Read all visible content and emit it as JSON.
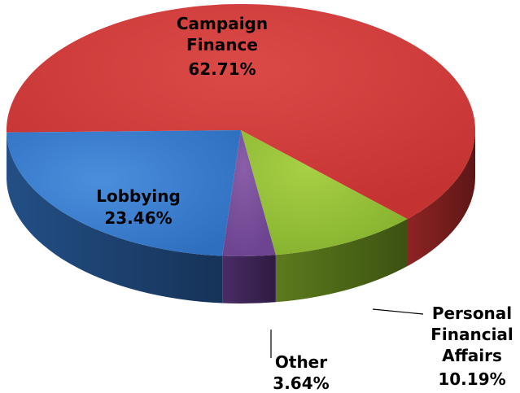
{
  "chart_data": {
    "type": "pie",
    "style": "3d",
    "slices": [
      {
        "name": "Campaign Finance",
        "value": 62.71,
        "label": "62.71%",
        "color": "#d03a3a"
      },
      {
        "name": "Personal Financial Affairs",
        "value": 10.19,
        "label": "10.19%",
        "color": "#9cc63b"
      },
      {
        "name": "Other",
        "value": 3.64,
        "label": "3.64%",
        "color": "#7a4f9a"
      },
      {
        "name": "Lobbying",
        "value": 23.46,
        "label": "23.46%",
        "color": "#3a7fce"
      }
    ],
    "labels": {
      "campaign": [
        "Campaign",
        "Finance",
        "62.71%"
      ],
      "lobbying": [
        "Lobbying",
        "23.46%"
      ],
      "personal": [
        "Personal",
        "Financial",
        "Affairs",
        "10.19%"
      ],
      "other": [
        "Other",
        "3.64%"
      ]
    }
  }
}
